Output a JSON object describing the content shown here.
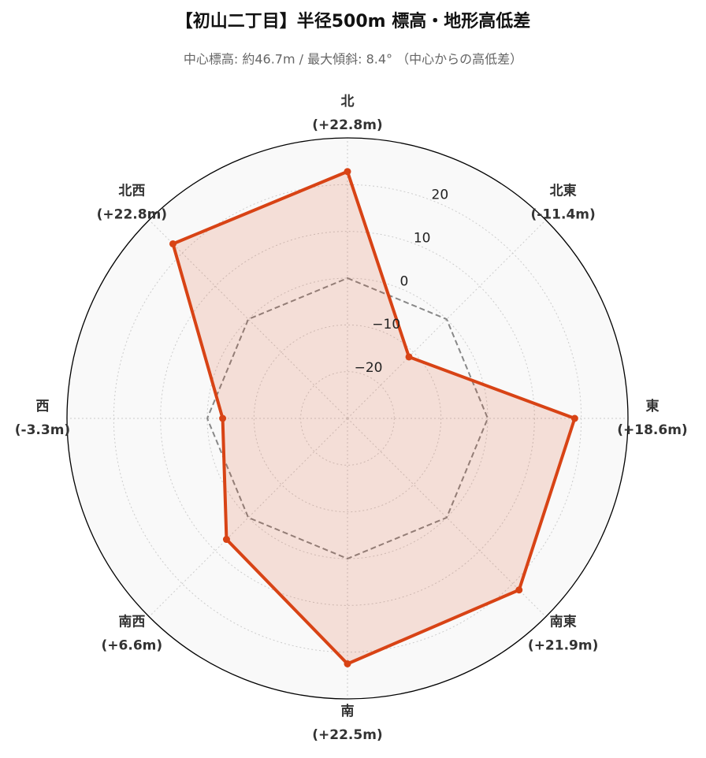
{
  "chart_data": {
    "type": "radar",
    "title": "【初山二丁目】半径500m 標高・地形高低差",
    "subtitle": "中心標高: 約46.7m / 最大傾斜: 8.4° （中心からの高低差）",
    "categories": [
      "北",
      "北東",
      "東",
      "南東",
      "南",
      "南西",
      "西",
      "北西"
    ],
    "values": [
      22.8,
      -11.4,
      18.6,
      21.9,
      22.5,
      6.6,
      -3.3,
      22.8
    ],
    "value_labels": [
      "(+22.8m)",
      "(-11.4m)",
      "(+18.6m)",
      "(+21.9m)",
      "(+22.5m)",
      "(+6.6m)",
      "(-3.3m)",
      "(+22.8m)"
    ],
    "color": "#d84315",
    "baseline": 0,
    "ylim": [
      -30,
      30
    ],
    "yticks": [
      {
        "value": -20,
        "label": "−20"
      },
      {
        "value": -10,
        "label": "−10"
      },
      0,
      10,
      20
    ],
    "grid": true
  }
}
